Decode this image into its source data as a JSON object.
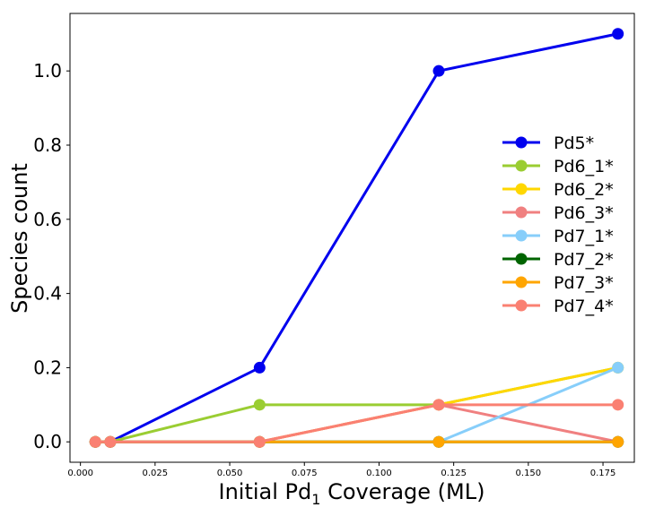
{
  "chart_data": {
    "type": "line",
    "title": "",
    "xlabel": "Initial Pd",
    "xlabel_sub": "1",
    "xlabel_suffix": " Coverage (ML)",
    "ylabel": "Species count",
    "xlim": [
      -0.0035,
      0.1855
    ],
    "ylim": [
      -0.055,
      1.155
    ],
    "xticks": [
      0.0,
      0.025,
      0.05,
      0.075,
      0.1,
      0.125,
      0.15,
      0.175
    ],
    "xtick_labels": [
      "0.000",
      "0.025",
      "0.050",
      "0.075",
      "0.100",
      "0.125",
      "0.150",
      "0.175"
    ],
    "yticks": [
      0.0,
      0.2,
      0.4,
      0.6,
      0.8,
      1.0
    ],
    "ytick_labels": [
      "0.0",
      "0.2",
      "0.4",
      "0.6",
      "0.8",
      "1.0"
    ],
    "legend_position": "center-right",
    "x": [
      0.005,
      0.01,
      0.06,
      0.12,
      0.18
    ],
    "series": [
      {
        "name": "Pd5*",
        "color": "#0000ee",
        "values": [
          0.0,
          0.0,
          0.2,
          1.0,
          1.1
        ]
      },
      {
        "name": "Pd6_1*",
        "color": "#9acd32",
        "values": [
          0.0,
          0.0,
          0.1,
          0.1,
          0.2
        ]
      },
      {
        "name": "Pd6_2*",
        "color": "#ffd700",
        "values": [
          0.0,
          0.0,
          0.0,
          0.1,
          0.2
        ]
      },
      {
        "name": "Pd6_3*",
        "color": "#f08080",
        "values": [
          0.0,
          0.0,
          0.0,
          0.1,
          0.0
        ]
      },
      {
        "name": "Pd7_1*",
        "color": "#87cefa",
        "values": [
          0.0,
          0.0,
          0.0,
          0.0,
          0.2
        ]
      },
      {
        "name": "Pd7_2*",
        "color": "#006400",
        "values": [
          0.0,
          0.0,
          0.0,
          0.0,
          0.0
        ]
      },
      {
        "name": "Pd7_3*",
        "color": "#ffa500",
        "values": [
          0.0,
          0.0,
          0.0,
          0.0,
          0.0
        ]
      },
      {
        "name": "Pd7_4*",
        "color": "#fa8072",
        "values": [
          0.0,
          0.0,
          0.0,
          0.1,
          0.1
        ]
      }
    ]
  }
}
